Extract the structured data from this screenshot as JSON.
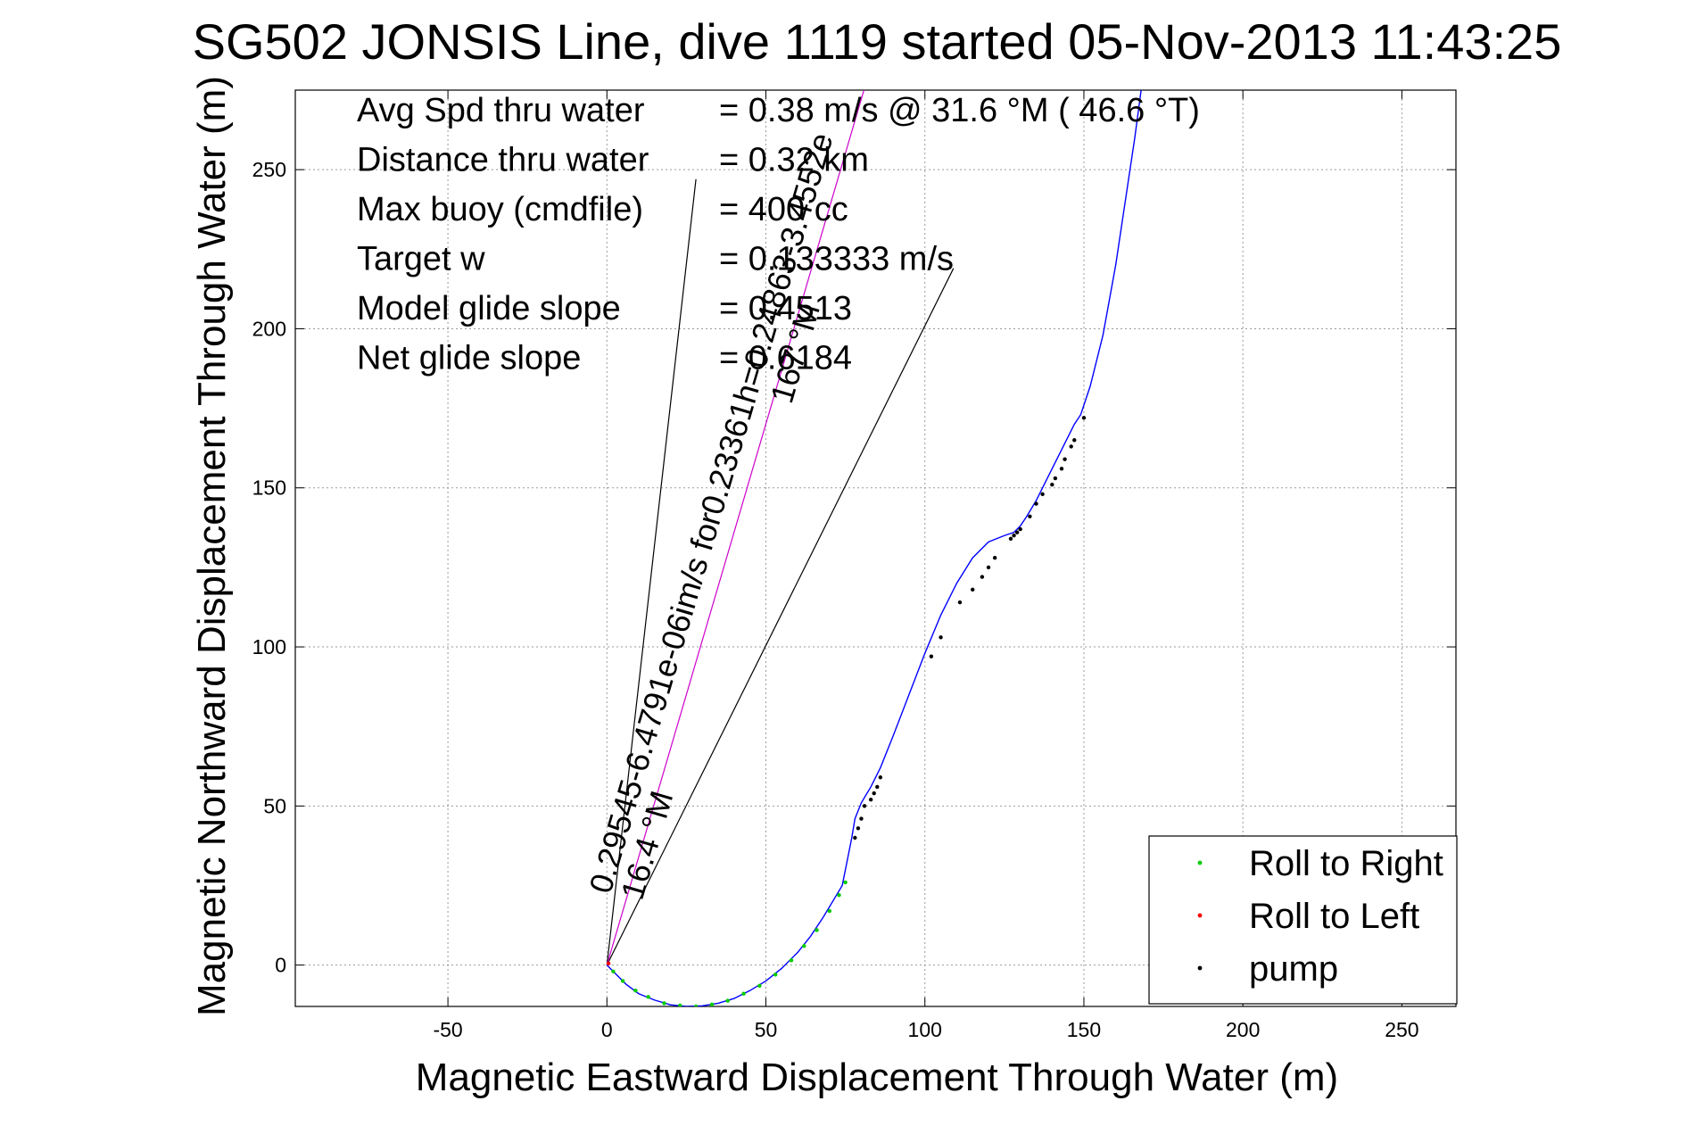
{
  "chart_data": {
    "type": "line",
    "title": "SG502 JONSIS Line, dive 1119 started 05-Nov-2013 11:43:25",
    "xlabel": "Magnetic Eastward Displacement Through Water (m)",
    "ylabel": "Magnetic Northward Displacement Through Water (m)",
    "xlim": [
      -98,
      267
    ],
    "ylim": [
      -13,
      275
    ],
    "xticks": [
      -50,
      0,
      50,
      100,
      150,
      200,
      250
    ],
    "yticks": [
      0,
      50,
      100,
      150,
      200,
      250
    ],
    "grid": true,
    "grid_color": "#9a9a9a",
    "stats": [
      {
        "label": "Avg Spd thru water",
        "value": "=  0.38 m/s @  31.6 °M ( 46.6 °T)"
      },
      {
        "label": "Distance thru water",
        "value": "=  0.32 km"
      },
      {
        "label": "Max buoy (cmdfile)",
        "value": "= 400 cc"
      },
      {
        "label": "Target w",
        "value": "= 0.133333 m/s"
      },
      {
        "label": "Model glide slope",
        "value": "= 0.4513"
      },
      {
        "label": "Net glide slope",
        "value": "= 0.6184"
      }
    ],
    "annotations": [
      {
        "text": "0.29545-6.4791e-06im/s for0.23361h=0.24863-3.4552e",
        "x": 1,
        "y": 22,
        "angle_deg": 73.6
      },
      {
        "text": "16.4 °M",
        "x": 11,
        "y": 20,
        "angle_deg": 73.6
      },
      {
        "text": "167 °M",
        "x": 58,
        "y": 176,
        "angle_deg": 73.6
      }
    ],
    "reference_lines": [
      {
        "name": "dive heading line",
        "x": [
          0,
          28
        ],
        "y": [
          0,
          247
        ],
        "color": "#000000"
      },
      {
        "name": "net displacement line",
        "x": [
          0,
          109
        ],
        "y": [
          0,
          219
        ],
        "color": "#000000"
      },
      {
        "name": "current vector",
        "x": [
          0,
          87
        ],
        "y": [
          0,
          296
        ],
        "color": "#cc00cc"
      }
    ],
    "series": [
      {
        "name": "track",
        "color": "#0000ff",
        "x": [
          0,
          3,
          6,
          10,
          15,
          20,
          25,
          30,
          35,
          40,
          45,
          50,
          55,
          60,
          64,
          68,
          71,
          74,
          76,
          77,
          78,
          80,
          83,
          86,
          90,
          95,
          100,
          105,
          110,
          115,
          120,
          125,
          128,
          130,
          132,
          135,
          138,
          141,
          144,
          147,
          149,
          152,
          156,
          160,
          163,
          166,
          168
        ],
        "y": [
          0,
          -3,
          -6,
          -9,
          -11,
          -12.5,
          -13,
          -12.8,
          -12,
          -10.5,
          -8,
          -5,
          -1,
          4,
          9,
          15,
          20,
          25,
          35,
          40,
          46,
          51,
          56,
          62,
          72,
          85,
          98,
          110,
          120,
          128,
          133,
          135,
          136,
          138,
          141,
          146,
          152,
          158,
          164,
          170,
          173,
          182,
          198,
          220,
          240,
          260,
          275
        ]
      },
      {
        "name": "Roll to Right",
        "color": "#00cc00",
        "x": [
          2,
          5,
          9,
          13,
          18,
          23,
          28,
          33,
          38,
          43,
          48,
          53,
          58,
          62,
          66,
          70,
          73,
          75
        ],
        "y": [
          -2,
          -5,
          -8,
          -10,
          -12,
          -12.7,
          -13,
          -12.4,
          -11.2,
          -9,
          -6.5,
          -3,
          1.5,
          6,
          11,
          17,
          22,
          26
        ]
      },
      {
        "name": "Roll to Left",
        "color": "#ff0000",
        "x": [
          0.5
        ],
        "y": [
          0.5
        ]
      },
      {
        "name": "pump",
        "color": "#000000",
        "x": [
          78,
          79,
          80,
          81,
          83,
          84,
          85,
          86,
          102,
          105,
          111,
          115,
          118,
          120,
          122,
          127,
          128,
          129,
          130,
          133,
          135,
          137,
          140,
          141,
          143,
          144,
          146,
          147,
          150
        ],
        "y": [
          40,
          43,
          46,
          50,
          52,
          54,
          56,
          59,
          97,
          103,
          114,
          118,
          122,
          125,
          128,
          134,
          135,
          136,
          137,
          141,
          145,
          148,
          151,
          153,
          156,
          159,
          163,
          165,
          172
        ]
      }
    ],
    "legend": {
      "position": "bottom-right",
      "entries": [
        {
          "label": "Roll to Right",
          "color": "#00cc00"
        },
        {
          "label": "Roll to Left",
          "color": "#ff0000"
        },
        {
          "label": "pump",
          "color": "#000000"
        }
      ]
    }
  }
}
